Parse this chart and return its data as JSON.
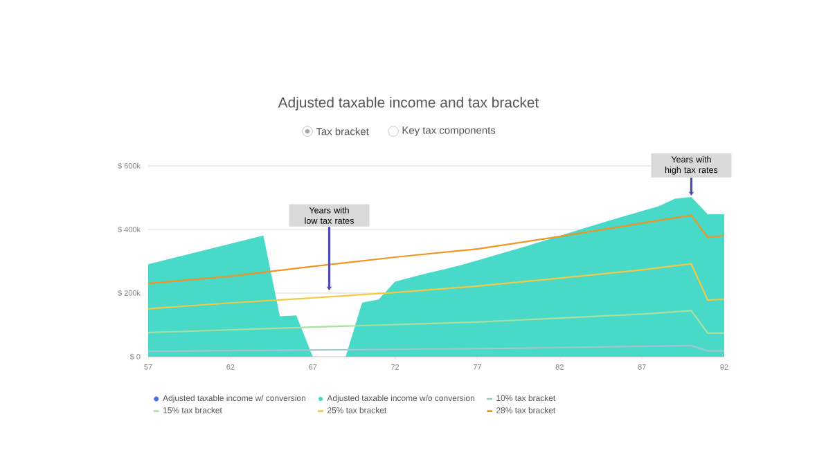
{
  "chart_data": {
    "type": "line",
    "title": "Adjusted taxable income and tax bracket",
    "xlim": [
      57,
      92
    ],
    "xticks": [
      57,
      62,
      67,
      72,
      77,
      82,
      87,
      92
    ],
    "ylim": [
      0,
      600000
    ],
    "yticks": [
      {
        "value": 0,
        "label": "$ 0"
      },
      {
        "value": 200000,
        "label": "$ 200k"
      },
      {
        "value": 400000,
        "label": "$ 400k"
      },
      {
        "value": 600000,
        "label": "$ 600k"
      }
    ],
    "grid": "y",
    "legend": "bottom",
    "series": [
      {
        "name": "Adjusted taxable income w/ conversion",
        "type": "area",
        "color": "#4f6fe0"
      },
      {
        "name": "Adjusted taxable income w/o conversion",
        "type": "area",
        "color": "#48d9c8",
        "x": [
          57,
          64,
          65,
          66,
          67,
          69,
          70,
          71,
          72,
          73,
          74,
          75,
          76,
          77,
          78,
          79,
          80,
          81,
          82,
          83,
          84,
          85,
          86,
          87,
          88,
          89,
          90,
          91,
          92
        ],
        "values": [
          291000,
          381000,
          127000,
          130000,
          0,
          0,
          170000,
          180000,
          236000,
          250000,
          263000,
          275000,
          288000,
          303000,
          318000,
          333000,
          348000,
          364000,
          380000,
          396000,
          412000,
          428000,
          443000,
          458000,
          473000,
          497000,
          502000,
          448000,
          448000
        ]
      },
      {
        "name": "10% tax bracket",
        "color": "#a0c8c8",
        "x": [
          57,
          77,
          90,
          91,
          92
        ],
        "values": [
          17000,
          25000,
          35000,
          18000,
          18000
        ]
      },
      {
        "name": "15% tax bracket",
        "color": "#a8e0a0",
        "x": [
          57,
          67,
          77,
          87,
          90,
          91,
          92
        ],
        "values": [
          76000,
          93000,
          109000,
          134000,
          145000,
          74000,
          74000
        ]
      },
      {
        "name": "25% tax bracket",
        "color": "#f5c842",
        "x": [
          57,
          62,
          67,
          72,
          77,
          82,
          87,
          90,
          91,
          92
        ],
        "values": [
          151000,
          169000,
          185000,
          202000,
          222000,
          247000,
          273000,
          292000,
          178000,
          181000
        ]
      },
      {
        "name": "28% tax bracket",
        "color": "#f39422",
        "x": [
          57,
          62,
          67,
          72,
          77,
          82,
          87,
          90,
          91,
          92
        ],
        "values": [
          230000,
          253000,
          284000,
          313000,
          339000,
          378000,
          420000,
          445000,
          375000,
          381000
        ]
      }
    ],
    "annotations": [
      "Tax bracket",
      "Key tax components",
      {
        "text": "Years with low tax rates",
        "x": 68,
        "y": 204000
      },
      {
        "text": "Years with high tax rates",
        "x": 90,
        "y": 502000
      }
    ]
  }
}
